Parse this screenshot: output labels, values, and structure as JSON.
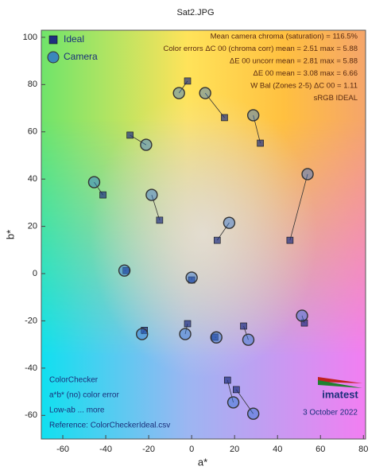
{
  "chart_data": {
    "type": "scatter",
    "title": "Sat2.JPG",
    "x_label": "a*",
    "y_label": "b*",
    "xlim": [
      -70,
      81
    ],
    "ylim": [
      -70,
      103
    ],
    "xticks": [
      -60,
      -40,
      -20,
      0,
      20,
      40,
      60,
      80
    ],
    "yticks": [
      -60,
      -40,
      -20,
      0,
      20,
      40,
      60,
      80,
      100
    ],
    "legend": "upper left",
    "series": [
      {
        "name": "Ideal",
        "marker": "square",
        "color": "#1f2f80",
        "x": [
          -28.7,
          -1.9,
          15.3,
          32.0,
          -14.9,
          -41.3,
          45.8,
          11.9,
          -30.5,
          0,
          -1.9,
          -22.0,
          10.8,
          24.2,
          52.5,
          16.7,
          20.8
        ],
        "y": [
          58.6,
          81.5,
          66.0,
          55.2,
          22.6,
          33.3,
          14.1,
          14.1,
          1.3,
          -2.7,
          -21.2,
          -24.0,
          -26.9,
          -22.2,
          -20.9,
          -45.1,
          -49.1
        ]
      },
      {
        "name": "Camera",
        "marker": "circle",
        "color": "#2a6fd0",
        "x": [
          -21.2,
          -5.9,
          6.3,
          28.7,
          -18.6,
          -45.4,
          54.0,
          17.5,
          -31.3,
          0,
          -3.0,
          -23.1,
          11.5,
          26.4,
          51.4,
          19.4,
          28.7
        ],
        "y": [
          54.5,
          76.4,
          76.4,
          67.0,
          33.3,
          38.7,
          42.1,
          21.5,
          1.3,
          -1.7,
          -25.6,
          -25.6,
          -27.0,
          -28.0,
          -17.8,
          -54.5,
          -59.3
        ]
      }
    ],
    "annotations": {
      "top_right": [
        "Mean camera chroma (saturation) = 116.5%",
        "Color errors  ΔC 00 (chroma corr)  mean = 2.51   max = 5.88",
        "ΔE 00 uncorr   mean = 2.81   max = 5.88",
        "ΔE 00   mean = 3.08   max = 6.66",
        "W Bal (Zones 2-5)  ΔC 00 = 1.11",
        "sRGB IDEAL"
      ],
      "bottom_left": [
        "ColorChecker",
        "a*b* (no) color error",
        "Low-ab ... more",
        "Reference: ColorCheckerIdeal.csv"
      ],
      "bottom_right": [
        "imatest",
        "3 October 2022"
      ]
    }
  }
}
